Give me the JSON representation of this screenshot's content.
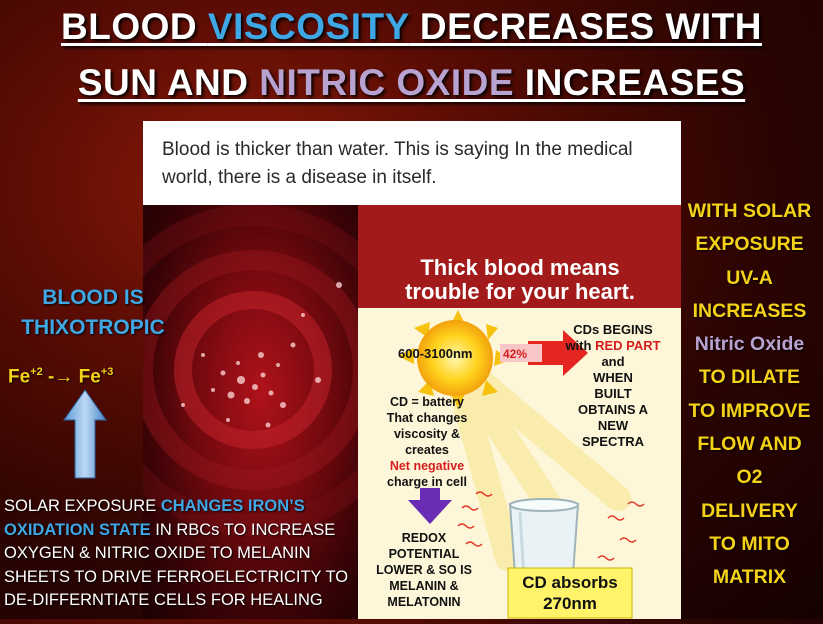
{
  "title": {
    "line1_part1": "BLOOD ",
    "line1_part2": "VISCOSITY",
    "line1_part3": " DECREASES WITH",
    "line2_part1": "SUN AND ",
    "line2_part2": "NITRIC OXIDE",
    "line2_part3": " INCREASES"
  },
  "card": {
    "quote": "Blood is thicker than water. This is saying In the medical world, there is a disease in itself."
  },
  "heart_banner": {
    "line1": "Thick blood means",
    "line2": "trouble for your heart."
  },
  "left": {
    "thixo_line1": "BLOOD IS",
    "thixo_line2": "THIXOTROPIC",
    "fe_from": "Fe",
    "fe_from_sup": "+2",
    "fe_arrow": " -→ ",
    "fe_to": "Fe",
    "fe_to_sup": "+3"
  },
  "bottom_left": {
    "p1": "SOLAR EXPOSURE ",
    "p2": "CHANGES IRON’S OXIDATION STATE",
    "p3": " IN RBCs TO INCREASE OXYGEN & NITRIC OXIDE TO MELANIN SHEETS TO DRIVE FERROELECTRICITY TO DE-DIFFERNTIATE CELLS FOR HEALING"
  },
  "diagram": {
    "spectrum": "600-3100nm",
    "percent": "42%",
    "cd_begins_1": "CDs BEGINS",
    "cd_begins_2": "with",
    "cd_begins_red": "RED PART",
    "cd_begins_3": "and",
    "cd_begins_4": "WHEN",
    "cd_begins_5": "BUILT",
    "cd_begins_6": "OBTAINS A",
    "cd_begins_7": "NEW",
    "cd_begins_8": "SPECTRA",
    "battery_1": "CD = battery",
    "battery_2": "That changes",
    "battery_3": "viscosity &",
    "battery_4": "creates",
    "battery_red": "Net negative",
    "battery_5": "charge in cell",
    "redox_1": "REDOX",
    "redox_2": "POTENTIAL",
    "redox_3": "LOWER & SO IS",
    "redox_4": "MELANIN &",
    "redox_5": "MELATONIN",
    "cd_absorbs_1": "CD absorbs",
    "cd_absorbs_2": "270nm"
  },
  "right": {
    "l1": "WITH SOLAR",
    "l2": "EXPOSURE",
    "l3": "UV-A",
    "l4": "INCREASES",
    "l5": "Nitric Oxide",
    "l6": "TO  DILATE",
    "l7": "TO IMPROVE",
    "l8": "FLOW AND",
    "l9": "O2",
    "l10": "DELIVERY",
    "l11": "TO MITO",
    "l12": "MATRIX"
  },
  "colors": {
    "accent_blue": "#3fa7e4",
    "accent_purple": "#b7a2d0",
    "accent_yellow": "#f5d21a",
    "banner_red": "#a21b1a"
  }
}
